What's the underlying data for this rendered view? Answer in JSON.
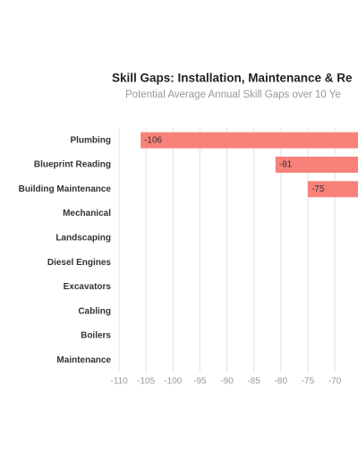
{
  "chart_data": {
    "type": "barh",
    "title": "Skill Gaps: Installation, Maintenance & Re",
    "subtitle": "Potential Average Annual Skill Gaps over 10 Ye",
    "categories": [
      "Plumbing",
      "Blueprint Reading",
      "Building Maintenance",
      "Mechanical",
      "Landscaping",
      "Diesel Engines",
      "Excavators",
      "Cabling",
      "Boilers",
      "Maintenance"
    ],
    "values": [
      -106,
      -81,
      -75,
      null,
      null,
      null,
      null,
      null,
      null,
      null
    ],
    "color": "#f8827a",
    "xlim": [
      -110,
      -65.7
    ],
    "xticks": [
      -110,
      -105,
      -100,
      -95,
      -90,
      -85,
      -80,
      -75,
      -70
    ],
    "grid": true
  }
}
